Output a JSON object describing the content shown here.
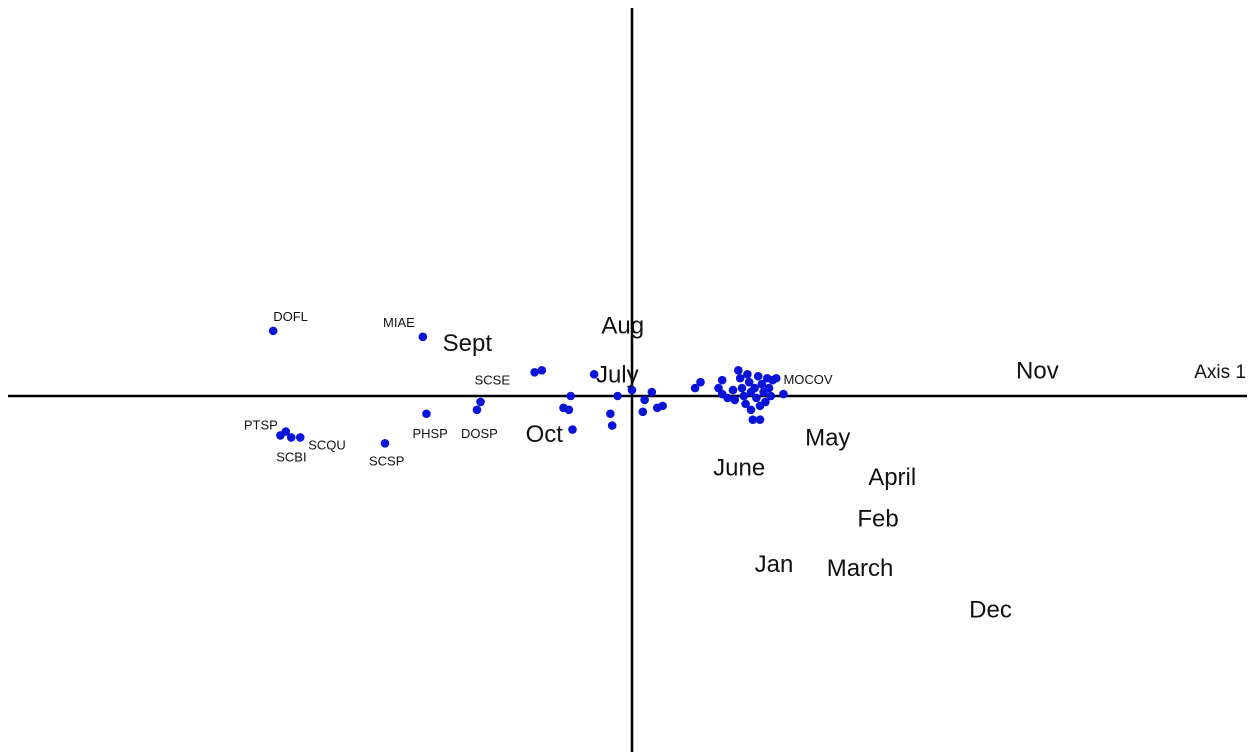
{
  "chart_data": {
    "type": "scatter",
    "title": "",
    "xlabel": "Axis 1",
    "ylabel": "",
    "xlim": [
      -2.4,
      3.5
    ],
    "ylim": [
      -2.1,
      2.2
    ],
    "grid": false,
    "point_color": "#0a14d9",
    "axis_color": "#000000",
    "species_points": [
      {
        "x": -1.99,
        "y": 0.33,
        "label": "DOFL"
      },
      {
        "x": -1.16,
        "y": 0.3,
        "label": "MIAE"
      },
      {
        "x": -1.95,
        "y": -0.2,
        "label": ""
      },
      {
        "x": -1.92,
        "y": -0.18,
        "label": "PTSP"
      },
      {
        "x": -1.89,
        "y": -0.21,
        "label": "SCBI"
      },
      {
        "x": -1.84,
        "y": -0.21,
        "label": "SCQU"
      },
      {
        "x": -1.37,
        "y": -0.24,
        "label": "SCSP"
      },
      {
        "x": -1.14,
        "y": -0.09,
        "label": "PHSP"
      },
      {
        "x": -0.86,
        "y": -0.07,
        "label": "DOSP"
      },
      {
        "x": -0.84,
        "y": -0.03,
        "label": ""
      },
      {
        "x": -0.54,
        "y": 0.12,
        "label": "SCSE"
      },
      {
        "x": -0.5,
        "y": 0.13,
        "label": ""
      },
      {
        "x": -0.38,
        "y": -0.06,
        "label": ""
      },
      {
        "x": -0.35,
        "y": -0.07,
        "label": ""
      },
      {
        "x": -0.34,
        "y": 0.0,
        "label": ""
      },
      {
        "x": -0.33,
        "y": -0.17,
        "label": ""
      },
      {
        "x": -0.21,
        "y": 0.11,
        "label": ""
      },
      {
        "x": -0.12,
        "y": -0.09,
        "label": ""
      },
      {
        "x": -0.11,
        "y": -0.15,
        "label": ""
      },
      {
        "x": -0.08,
        "y": 0.0,
        "label": ""
      },
      {
        "x": 0.0,
        "y": 0.03,
        "label": ""
      },
      {
        "x": 0.06,
        "y": -0.08,
        "label": ""
      },
      {
        "x": 0.07,
        "y": -0.02,
        "label": ""
      },
      {
        "x": 0.11,
        "y": 0.02,
        "label": ""
      },
      {
        "x": 0.14,
        "y": -0.06,
        "label": ""
      },
      {
        "x": 0.17,
        "y": -0.05,
        "label": ""
      },
      {
        "x": 0.35,
        "y": 0.04,
        "label": ""
      },
      {
        "x": 0.38,
        "y": 0.07,
        "label": ""
      },
      {
        "x": 0.48,
        "y": 0.04,
        "label": ""
      },
      {
        "x": 0.5,
        "y": 0.08,
        "label": ""
      },
      {
        "x": 0.5,
        "y": 0.01,
        "label": ""
      },
      {
        "x": 0.53,
        "y": -0.01,
        "label": ""
      },
      {
        "x": 0.56,
        "y": 0.03,
        "label": ""
      },
      {
        "x": 0.57,
        "y": -0.02,
        "label": ""
      },
      {
        "x": 0.59,
        "y": 0.13,
        "label": ""
      },
      {
        "x": 0.6,
        "y": 0.09,
        "label": ""
      },
      {
        "x": 0.61,
        "y": 0.04,
        "label": ""
      },
      {
        "x": 0.62,
        "y": 0.0,
        "label": ""
      },
      {
        "x": 0.63,
        "y": -0.04,
        "label": ""
      },
      {
        "x": 0.64,
        "y": 0.11,
        "label": ""
      },
      {
        "x": 0.65,
        "y": 0.07,
        "label": ""
      },
      {
        "x": 0.66,
        "y": 0.02,
        "label": ""
      },
      {
        "x": 0.66,
        "y": -0.07,
        "label": ""
      },
      {
        "x": 0.67,
        "y": -0.12,
        "label": ""
      },
      {
        "x": 0.68,
        "y": 0.04,
        "label": ""
      },
      {
        "x": 0.69,
        "y": -0.01,
        "label": ""
      },
      {
        "x": 0.7,
        "y": 0.1,
        "label": ""
      },
      {
        "x": 0.71,
        "y": -0.05,
        "label": ""
      },
      {
        "x": 0.71,
        "y": -0.12,
        "label": ""
      },
      {
        "x": 0.72,
        "y": 0.06,
        "label": ""
      },
      {
        "x": 0.73,
        "y": 0.02,
        "label": ""
      },
      {
        "x": 0.74,
        "y": -0.03,
        "label": ""
      },
      {
        "x": 0.75,
        "y": 0.09,
        "label": ""
      },
      {
        "x": 0.76,
        "y": 0.04,
        "label": ""
      },
      {
        "x": 0.77,
        "y": 0.0,
        "label": ""
      },
      {
        "x": 0.78,
        "y": 0.08,
        "label": ""
      },
      {
        "x": 0.8,
        "y": 0.09,
        "label": ""
      },
      {
        "x": 0.84,
        "y": 0.01,
        "label": "MOCOV"
      }
    ],
    "month_labels": [
      {
        "x": -0.17,
        "y": 0.35,
        "label": "Aug"
      },
      {
        "x": -0.2,
        "y": 0.1,
        "label": "July"
      },
      {
        "x": -1.05,
        "y": 0.26,
        "label": "Sept"
      },
      {
        "x": -0.59,
        "y": -0.2,
        "label": "Oct"
      },
      {
        "x": 2.13,
        "y": 0.12,
        "label": "Nov"
      },
      {
        "x": 0.96,
        "y": -0.22,
        "label": "May"
      },
      {
        "x": 0.45,
        "y": -0.37,
        "label": "June"
      },
      {
        "x": 1.31,
        "y": -0.42,
        "label": "April"
      },
      {
        "x": 1.25,
        "y": -0.63,
        "label": "Feb"
      },
      {
        "x": 0.68,
        "y": -0.86,
        "label": "Jan"
      },
      {
        "x": 1.08,
        "y": -0.88,
        "label": "March"
      },
      {
        "x": 1.87,
        "y": -1.09,
        "label": "Dec"
      }
    ]
  }
}
